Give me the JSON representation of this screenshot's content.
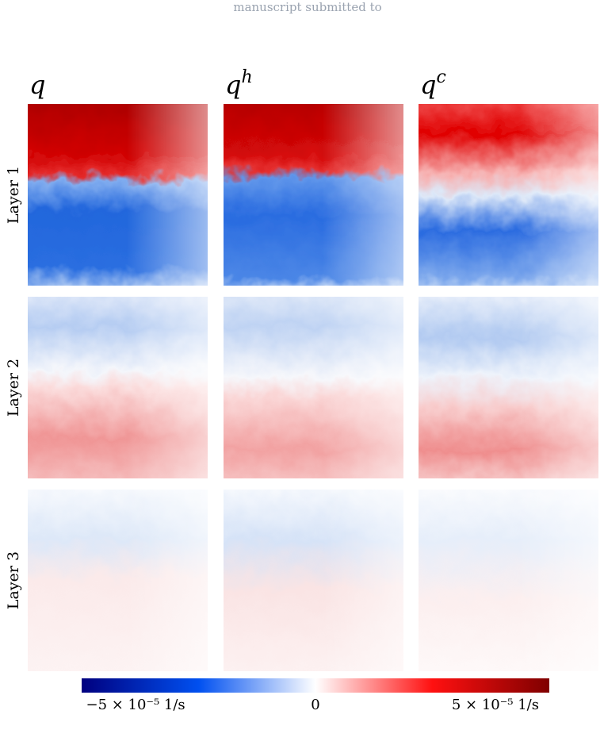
{
  "header": "manuscript submitted to",
  "columns": [
    {
      "base": "q"
    },
    {
      "base": "q",
      "sup": "h"
    },
    {
      "base": "q",
      "sup": "c"
    }
  ],
  "rows": [
    "Layer 1",
    "Layer 2",
    "Layer 3"
  ],
  "colorbar": {
    "lim": [
      -6.5e-05,
      6.5e-05
    ],
    "colors": [
      "#00007f",
      "#0050f0",
      "#ffffff",
      "#ff1010",
      "#7f0000"
    ],
    "ticks": [
      {
        "value": -5e-05,
        "label": "−5 × 10⁻⁵  1/s"
      },
      0,
      {
        "value": 5e-05,
        "label": "5 × 10⁻⁵  1/s"
      }
    ]
  }
}
